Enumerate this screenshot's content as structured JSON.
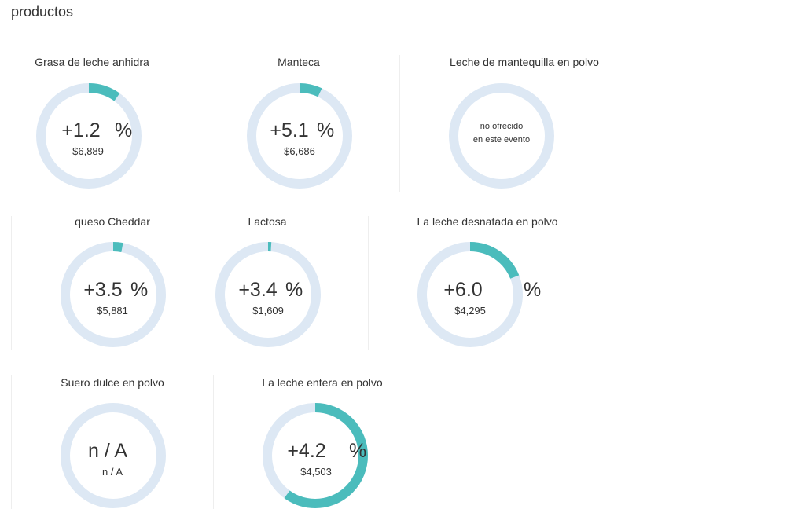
{
  "section": {
    "title": "productos"
  },
  "colors": {
    "track": "#dde8f4",
    "fill": "#4bbcbc"
  },
  "products": [
    {
      "name": "Grasa de leche anhidra",
      "change": "+1.2",
      "percent_sign": "%",
      "price": "$6,889",
      "fill_fraction": 0.1
    },
    {
      "name": "Manteca",
      "change": "+5.1",
      "percent_sign": "%",
      "price": "$6,686",
      "fill_fraction": 0.07
    },
    {
      "name": "Leche de mantequilla en polvo",
      "note_line1": "no ofrecido",
      "note_line2": "en este evento",
      "fill_fraction": 0
    },
    {
      "name": "queso Cheddar",
      "change": "+3.5",
      "percent_sign": "%",
      "price": "$5,881",
      "fill_fraction": 0.03
    },
    {
      "name": "Lactosa",
      "change": "+3.4",
      "percent_sign": "%",
      "price": "$1,609",
      "fill_fraction": 0.01
    },
    {
      "name": "La leche desnatada en polvo",
      "change": "+6.0",
      "percent_sign": "%",
      "price": "$4,295",
      "fill_fraction": 0.19
    },
    {
      "name": "Suero dulce en polvo",
      "change": "n / A",
      "price": "n / A",
      "fill_fraction": 0
    },
    {
      "name": "La leche entera en polvo",
      "change": "+4.2",
      "percent_sign": "%",
      "price": "$4,503",
      "fill_fraction": 0.6
    }
  ]
}
